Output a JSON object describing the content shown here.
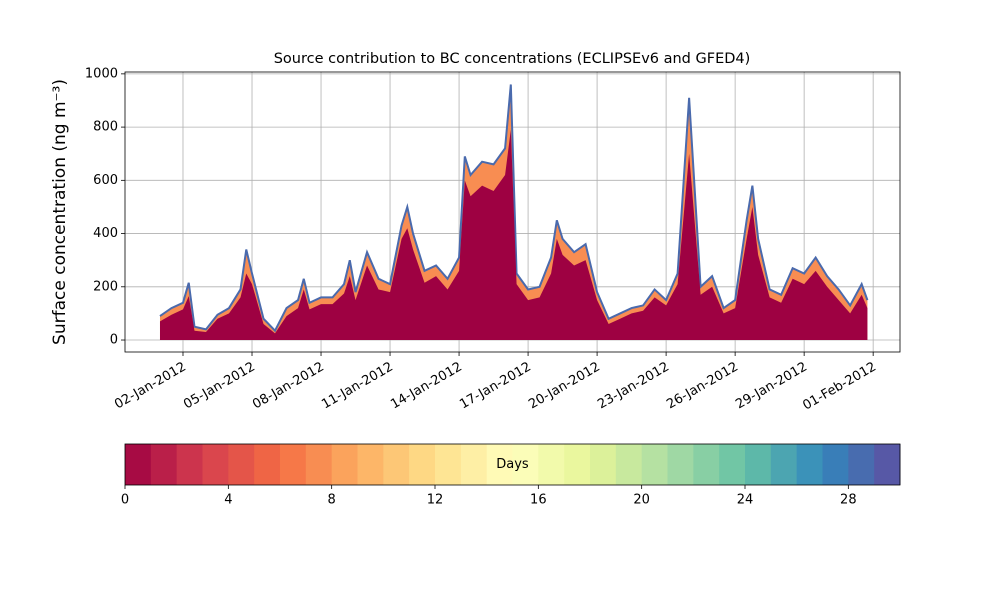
{
  "chart_data": {
    "type": "area",
    "title": "Source contribution to BC concentrations (ECLIPSEv6 and GFED4)",
    "y_label": "Surface concentration (ng m⁻³)",
    "x": [
      "2012-01-01T00:00",
      "2012-01-01T12:00",
      "2012-01-02T00:00",
      "2012-01-02T06:00",
      "2012-01-02T12:00",
      "2012-01-03T00:00",
      "2012-01-03T12:00",
      "2012-01-04T00:00",
      "2012-01-04T12:00",
      "2012-01-04T18:00",
      "2012-01-05T00:00",
      "2012-01-05T12:00",
      "2012-01-06T00:00",
      "2012-01-06T12:00",
      "2012-01-07T00:00",
      "2012-01-07T06:00",
      "2012-01-07T12:00",
      "2012-01-08T00:00",
      "2012-01-08T12:00",
      "2012-01-09T00:00",
      "2012-01-09T06:00",
      "2012-01-09T12:00",
      "2012-01-10T00:00",
      "2012-01-10T12:00",
      "2012-01-11T00:00",
      "2012-01-11T12:00",
      "2012-01-11T18:00",
      "2012-01-12T00:00",
      "2012-01-12T12:00",
      "2012-01-13T00:00",
      "2012-01-13T12:00",
      "2012-01-14T00:00",
      "2012-01-14T06:00",
      "2012-01-14T12:00",
      "2012-01-15T00:00",
      "2012-01-15T12:00",
      "2012-01-16T00:00",
      "2012-01-16T06:00",
      "2012-01-16T12:00",
      "2012-01-17T00:00",
      "2012-01-17T12:00",
      "2012-01-18T00:00",
      "2012-01-18T06:00",
      "2012-01-18T12:00",
      "2012-01-19T00:00",
      "2012-01-19T12:00",
      "2012-01-20T00:00",
      "2012-01-20T12:00",
      "2012-01-21T00:00",
      "2012-01-21T12:00",
      "2012-01-22T00:00",
      "2012-01-22T12:00",
      "2012-01-23T00:00",
      "2012-01-23T12:00",
      "2012-01-24T00:00",
      "2012-01-24T12:00",
      "2012-01-25T00:00",
      "2012-01-25T12:00",
      "2012-01-26T00:00",
      "2012-01-26T12:00",
      "2012-01-26T18:00",
      "2012-01-27T00:00",
      "2012-01-27T12:00",
      "2012-01-28T00:00",
      "2012-01-28T12:00",
      "2012-01-29T00:00",
      "2012-01-29T12:00",
      "2012-01-30T00:00",
      "2012-01-30T12:00",
      "2012-01-31T00:00",
      "2012-01-31T12:00",
      "2012-01-31T18:00"
    ],
    "series": [
      {
        "color": "#f88d52",
        "line_color": "#4a6aad",
        "values": [
          90,
          120,
          140,
          215,
          50,
          40,
          95,
          120,
          190,
          340,
          250,
          80,
          35,
          120,
          150,
          230,
          140,
          160,
          160,
          210,
          300,
          180,
          330,
          230,
          210,
          430,
          500,
          400,
          260,
          280,
          230,
          310,
          690,
          620,
          670,
          660,
          720,
          960,
          250,
          190,
          200,
          310,
          450,
          380,
          330,
          360,
          180,
          80,
          100,
          120,
          130,
          190,
          150,
          250,
          910,
          200,
          240,
          120,
          150,
          450,
          580,
          380,
          190,
          170,
          270,
          250,
          310,
          240,
          190,
          130,
          210,
          150
        ]
      },
      {
        "color": "#9e0142",
        "values": [
          70,
          95,
          115,
          165,
          35,
          30,
          80,
          100,
          160,
          250,
          210,
          60,
          25,
          90,
          120,
          190,
          115,
          135,
          135,
          175,
          240,
          150,
          280,
          190,
          180,
          380,
          420,
          340,
          215,
          240,
          190,
          260,
          600,
          540,
          580,
          560,
          620,
          790,
          210,
          150,
          160,
          250,
          380,
          320,
          280,
          300,
          150,
          60,
          80,
          100,
          110,
          160,
          130,
          210,
          700,
          170,
          200,
          100,
          120,
          380,
          500,
          320,
          160,
          140,
          230,
          210,
          260,
          200,
          150,
          100,
          170,
          120
        ]
      }
    ],
    "xlim": [
      "2011-12-30T11:30",
      "2012-02-02T04:00"
    ],
    "xticks": [
      {
        "value": "2012-01-02T00:00",
        "label": "02-Jan-2012"
      },
      {
        "value": "2012-01-05T00:00",
        "label": "05-Jan-2012"
      },
      {
        "value": "2012-01-08T00:00",
        "label": "08-Jan-2012"
      },
      {
        "value": "2012-01-11T00:00",
        "label": "11-Jan-2012"
      },
      {
        "value": "2012-01-14T00:00",
        "label": "14-Jan-2012"
      },
      {
        "value": "2012-01-17T00:00",
        "label": "17-Jan-2012"
      },
      {
        "value": "2012-01-20T00:00",
        "label": "20-Jan-2012"
      },
      {
        "value": "2012-01-23T00:00",
        "label": "23-Jan-2012"
      },
      {
        "value": "2012-01-26T00:00",
        "label": "26-Jan-2012"
      },
      {
        "value": "2012-01-29T00:00",
        "label": "29-Jan-2012"
      },
      {
        "value": "2012-02-01T00:00",
        "label": "01-Feb-2012"
      }
    ],
    "ylim": [
      -45,
      1007
    ],
    "yticks": [
      0,
      200,
      400,
      600,
      800,
      1000
    ],
    "grid": true,
    "colorbar": {
      "label": "Days",
      "lim": [
        0,
        30
      ],
      "ticks": [
        0,
        4,
        8,
        12,
        16,
        20,
        24,
        28
      ],
      "colors": [
        "#a70b44",
        "#ba1f49",
        "#cc344d",
        "#da464d",
        "#e45549",
        "#ef6545",
        "#f67848",
        "#f88d52",
        "#fba35c",
        "#fdb668",
        "#fdc776",
        "#fed884",
        "#fee594",
        "#feefa5",
        "#fffab6",
        "#fbfdb8",
        "#f2faab",
        "#eaf79e",
        "#dcf19a",
        "#c8e99e",
        "#b5e1a2",
        "#9fd8a4",
        "#88cfa4",
        "#71c6a5",
        "#5db8a9",
        "#4ca5b1",
        "#3b92b9",
        "#397eb8",
        "#486caf",
        "#5758a6"
      ]
    }
  }
}
